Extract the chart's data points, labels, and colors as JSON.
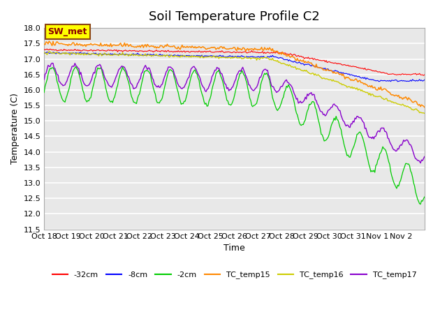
{
  "title": "Soil Temperature Profile C2",
  "xlabel": "Time",
  "ylabel": "Temperature (C)",
  "ylim": [
    11.5,
    18.0
  ],
  "yticks": [
    11.5,
    12.0,
    12.5,
    13.0,
    13.5,
    14.0,
    14.5,
    15.0,
    15.5,
    16.0,
    16.5,
    17.0,
    17.5,
    18.0
  ],
  "xtick_labels": [
    "Oct 18",
    "Oct 19",
    "Oct 20",
    "Oct 21",
    "Oct 22",
    "Oct 23",
    "Oct 24",
    "Oct 25",
    "Oct 26",
    "Oct 27",
    "Oct 28",
    "Oct 29",
    "Oct 30",
    "Oct 31",
    "Nov 1",
    "Nov 2"
  ],
  "legend_labels": [
    "-32cm",
    "-8cm",
    "-2cm",
    "TC_temp15",
    "TC_temp16",
    "TC_temp17"
  ],
  "legend_colors": [
    "#ff0000",
    "#0000ff",
    "#00cc00",
    "#ff8800",
    "#cccc00",
    "#8800cc"
  ],
  "annotation_text": "SW_met",
  "annotation_bg": "#ffff00",
  "annotation_border": "#8B4513",
  "plot_bg": "#e8e8e8",
  "grid_color": "#ffffff",
  "title_fontsize": 13,
  "n_days": 16
}
